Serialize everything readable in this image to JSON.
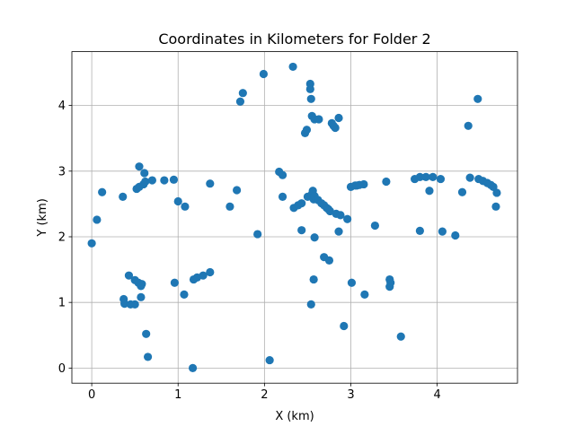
{
  "chart_data": {
    "type": "scatter",
    "title": "Coordinates in Kilometers for Folder 2",
    "xlabel": "X (km)",
    "ylabel": "Y (km)",
    "xlim": [
      -0.23,
      4.93
    ],
    "ylim": [
      -0.23,
      4.82
    ],
    "xticks": [
      0,
      1,
      2,
      3,
      4
    ],
    "yticks": [
      0,
      1,
      2,
      3,
      4
    ],
    "grid": true,
    "marker_color": "#1f77b4",
    "points": [
      [
        0.0,
        1.9
      ],
      [
        0.06,
        2.26
      ],
      [
        0.12,
        2.68
      ],
      [
        0.36,
        2.61
      ],
      [
        0.37,
        1.05
      ],
      [
        0.38,
        0.98
      ],
      [
        0.43,
        1.41
      ],
      [
        0.45,
        0.97
      ],
      [
        0.5,
        0.97
      ],
      [
        0.5,
        1.34
      ],
      [
        0.52,
        2.73
      ],
      [
        0.54,
        1.3
      ],
      [
        0.55,
        3.07
      ],
      [
        0.55,
        2.76
      ],
      [
        0.57,
        1.25
      ],
      [
        0.58,
        1.28
      ],
      [
        0.57,
        1.08
      ],
      [
        0.6,
        2.8
      ],
      [
        0.61,
        2.97
      ],
      [
        0.62,
        2.84
      ],
      [
        0.63,
        0.52
      ],
      [
        0.65,
        0.17
      ],
      [
        0.7,
        2.86
      ],
      [
        0.84,
        2.86
      ],
      [
        0.95,
        2.87
      ],
      [
        0.96,
        1.3
      ],
      [
        1.0,
        2.54
      ],
      [
        1.07,
        1.12
      ],
      [
        1.08,
        2.46
      ],
      [
        1.17,
        0.0
      ],
      [
        1.18,
        1.35
      ],
      [
        1.22,
        1.38
      ],
      [
        1.29,
        1.41
      ],
      [
        1.37,
        1.46
      ],
      [
        1.37,
        2.81
      ],
      [
        1.6,
        2.46
      ],
      [
        1.68,
        2.71
      ],
      [
        1.72,
        4.06
      ],
      [
        1.75,
        4.19
      ],
      [
        1.92,
        2.04
      ],
      [
        1.99,
        4.48
      ],
      [
        2.06,
        0.12
      ],
      [
        2.17,
        2.99
      ],
      [
        2.21,
        2.94
      ],
      [
        2.21,
        2.61
      ],
      [
        2.33,
        4.59
      ],
      [
        2.34,
        2.44
      ],
      [
        2.39,
        2.48
      ],
      [
        2.43,
        2.51
      ],
      [
        2.43,
        2.1
      ],
      [
        2.47,
        3.58
      ],
      [
        2.49,
        3.63
      ],
      [
        2.5,
        2.61
      ],
      [
        2.53,
        4.33
      ],
      [
        2.53,
        4.25
      ],
      [
        2.54,
        4.1
      ],
      [
        2.55,
        3.84
      ],
      [
        2.55,
        2.65
      ],
      [
        2.56,
        2.7
      ],
      [
        2.57,
        2.57
      ],
      [
        2.58,
        3.79
      ],
      [
        2.58,
        2.62
      ],
      [
        2.54,
        0.97
      ],
      [
        2.57,
        1.35
      ],
      [
        2.58,
        1.99
      ],
      [
        2.62,
        2.56
      ],
      [
        2.63,
        3.79
      ],
      [
        2.66,
        2.51
      ],
      [
        2.69,
        2.48
      ],
      [
        2.69,
        1.69
      ],
      [
        2.72,
        2.44
      ],
      [
        2.74,
        2.42
      ],
      [
        2.76,
        2.39
      ],
      [
        2.75,
        1.64
      ],
      [
        2.78,
        3.73
      ],
      [
        2.8,
        3.69
      ],
      [
        2.82,
        3.66
      ],
      [
        2.83,
        2.35
      ],
      [
        2.86,
        3.81
      ],
      [
        2.86,
        2.08
      ],
      [
        2.88,
        2.33
      ],
      [
        2.92,
        0.64
      ],
      [
        2.96,
        2.27
      ],
      [
        3.0,
        2.76
      ],
      [
        3.01,
        1.3
      ],
      [
        3.05,
        2.78
      ],
      [
        3.07,
        2.78
      ],
      [
        3.1,
        2.79
      ],
      [
        3.15,
        2.8
      ],
      [
        3.16,
        1.12
      ],
      [
        3.28,
        2.17
      ],
      [
        3.41,
        2.84
      ],
      [
        3.45,
        1.35
      ],
      [
        3.45,
        1.24
      ],
      [
        3.46,
        1.3
      ],
      [
        3.58,
        0.48
      ],
      [
        3.74,
        2.88
      ],
      [
        3.8,
        2.91
      ],
      [
        3.8,
        2.09
      ],
      [
        3.87,
        2.91
      ],
      [
        3.91,
        2.7
      ],
      [
        3.95,
        2.91
      ],
      [
        4.04,
        2.88
      ],
      [
        4.06,
        2.08
      ],
      [
        4.21,
        2.02
      ],
      [
        4.29,
        2.68
      ],
      [
        4.36,
        3.69
      ],
      [
        4.38,
        2.9
      ],
      [
        4.47,
        4.1
      ],
      [
        4.48,
        2.88
      ],
      [
        4.53,
        2.85
      ],
      [
        4.58,
        2.82
      ],
      [
        4.62,
        2.79
      ],
      [
        4.65,
        2.76
      ],
      [
        4.69,
        2.67
      ],
      [
        4.68,
        2.46
      ]
    ]
  }
}
